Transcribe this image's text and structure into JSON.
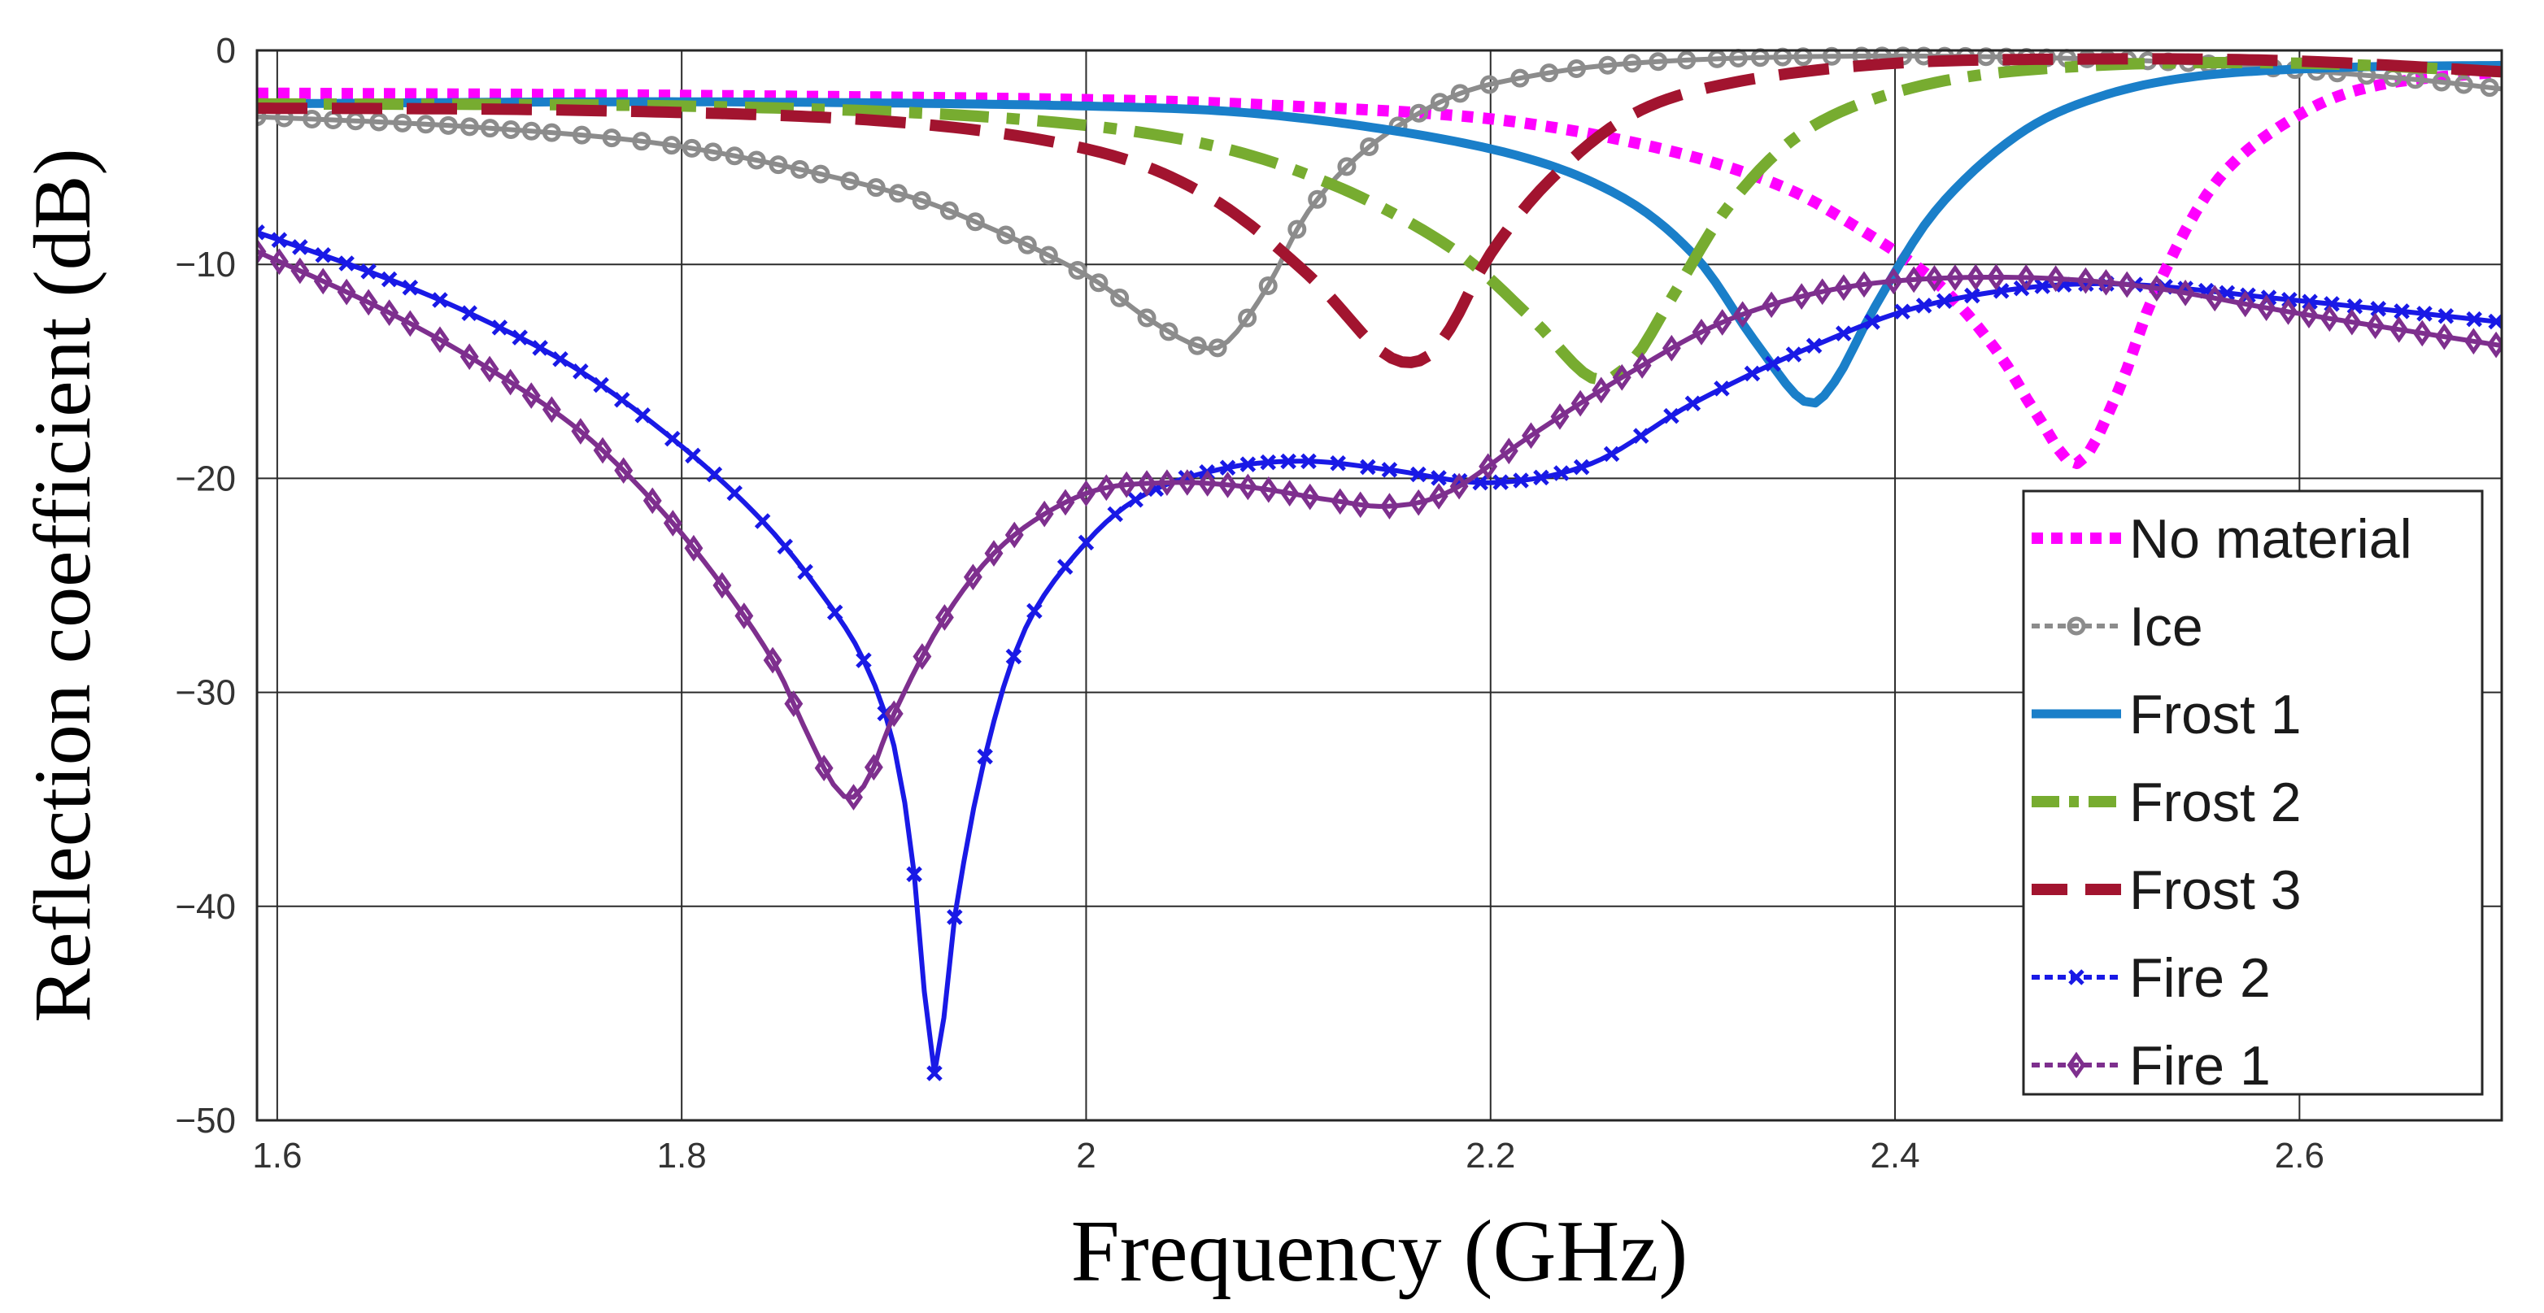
{
  "chart_data": {
    "type": "line",
    "title": "",
    "xlabel": "Frequency (GHz)",
    "ylabel": "Reflection coefficient (dB)",
    "xlim": [
      1.59,
      2.7
    ],
    "ylim": [
      -50,
      0
    ],
    "xticks": [
      1.6,
      1.8,
      2.0,
      2.2,
      2.4,
      2.6
    ],
    "xtick_labels": [
      "1.6",
      "1.8",
      "2",
      "2.2",
      "2.4",
      "2.6"
    ],
    "yticks": [
      0,
      -10,
      -20,
      -30,
      -40,
      -50
    ],
    "ytick_labels": [
      "0",
      "−10",
      "−20",
      "−30",
      "−40",
      "−50"
    ],
    "grid": true,
    "legend_position": "bottom-right",
    "series": [
      {
        "name": "No material",
        "color": "#ff00ff",
        "style": "dotted",
        "marker": "none",
        "points": [
          [
            1.59,
            -2
          ],
          [
            1.8,
            -2.1
          ],
          [
            2.0,
            -2.3
          ],
          [
            2.1,
            -2.6
          ],
          [
            2.2,
            -3.2
          ],
          [
            2.28,
            -4.5
          ],
          [
            2.34,
            -6.2
          ],
          [
            2.38,
            -8.2
          ],
          [
            2.42,
            -10.8
          ],
          [
            2.45,
            -14
          ],
          [
            2.47,
            -17
          ],
          [
            2.49,
            -19.3
          ],
          [
            2.51,
            -16
          ],
          [
            2.53,
            -11
          ],
          [
            2.56,
            -6
          ],
          [
            2.6,
            -3
          ],
          [
            2.64,
            -1.6
          ],
          [
            2.7,
            -1
          ]
        ]
      },
      {
        "name": "Ice",
        "color": "#8c8c8c",
        "style": "marker-line",
        "marker": "circle",
        "points": [
          [
            1.59,
            -3.1
          ],
          [
            1.7,
            -3.6
          ],
          [
            1.8,
            -4.5
          ],
          [
            1.9,
            -6.5
          ],
          [
            1.95,
            -8.2
          ],
          [
            2.0,
            -10.5
          ],
          [
            2.03,
            -12.5
          ],
          [
            2.055,
            -13.8
          ],
          [
            2.07,
            -13.6
          ],
          [
            2.09,
            -11
          ],
          [
            2.11,
            -7.5
          ],
          [
            2.14,
            -4.5
          ],
          [
            2.18,
            -2.2
          ],
          [
            2.22,
            -1.2
          ],
          [
            2.27,
            -0.6
          ],
          [
            2.35,
            -0.3
          ],
          [
            2.45,
            -0.3
          ],
          [
            2.55,
            -0.6
          ],
          [
            2.65,
            -1.3
          ],
          [
            2.7,
            -1.8
          ]
        ]
      },
      {
        "name": "Frost 1",
        "color": "#1a7fc9",
        "style": "solid",
        "marker": "none",
        "points": [
          [
            1.59,
            -2.5
          ],
          [
            1.8,
            -2.4
          ],
          [
            2.0,
            -2.6
          ],
          [
            2.1,
            -3.1
          ],
          [
            2.2,
            -4.6
          ],
          [
            2.26,
            -6.6
          ],
          [
            2.3,
            -9.5
          ],
          [
            2.33,
            -13.5
          ],
          [
            2.355,
            -16.4
          ],
          [
            2.37,
            -15.5
          ],
          [
            2.39,
            -12
          ],
          [
            2.42,
            -7.5
          ],
          [
            2.46,
            -4
          ],
          [
            2.5,
            -2.2
          ],
          [
            2.55,
            -1.2
          ],
          [
            2.62,
            -0.8
          ],
          [
            2.7,
            -0.7
          ]
        ]
      },
      {
        "name": "Frost 2",
        "color": "#77ac30",
        "style": "dashdot",
        "marker": "none",
        "points": [
          [
            1.59,
            -2.5
          ],
          [
            1.8,
            -2.6
          ],
          [
            1.95,
            -3.1
          ],
          [
            2.05,
            -4.2
          ],
          [
            2.12,
            -6.2
          ],
          [
            2.18,
            -9.2
          ],
          [
            2.22,
            -12.5
          ],
          [
            2.25,
            -15.3
          ],
          [
            2.27,
            -14.5
          ],
          [
            2.29,
            -11.5
          ],
          [
            2.32,
            -7
          ],
          [
            2.36,
            -3.5
          ],
          [
            2.42,
            -1.5
          ],
          [
            2.5,
            -0.7
          ],
          [
            2.6,
            -0.6
          ],
          [
            2.7,
            -1
          ]
        ]
      },
      {
        "name": "Frost 3",
        "color": "#a2142f",
        "style": "dashed",
        "marker": "none",
        "points": [
          [
            1.59,
            -2.7
          ],
          [
            1.75,
            -2.8
          ],
          [
            1.9,
            -3.3
          ],
          [
            2.0,
            -4.6
          ],
          [
            2.06,
            -6.8
          ],
          [
            2.11,
            -10.5
          ],
          [
            2.145,
            -14
          ],
          [
            2.165,
            -14.5
          ],
          [
            2.18,
            -13
          ],
          [
            2.2,
            -9.5
          ],
          [
            2.23,
            -6
          ],
          [
            2.27,
            -3
          ],
          [
            2.32,
            -1.5
          ],
          [
            2.4,
            -0.6
          ],
          [
            2.5,
            -0.4
          ],
          [
            2.6,
            -0.5
          ],
          [
            2.7,
            -1
          ]
        ]
      },
      {
        "name": "Fire 2",
        "color": "#1919e6",
        "style": "marker-line",
        "marker": "x",
        "points": [
          [
            1.59,
            -8.5
          ],
          [
            1.65,
            -10.5
          ],
          [
            1.7,
            -12.5
          ],
          [
            1.75,
            -15
          ],
          [
            1.8,
            -18.5
          ],
          [
            1.84,
            -22
          ],
          [
            1.87,
            -25.5
          ],
          [
            1.89,
            -28.5
          ],
          [
            1.905,
            -32.5
          ],
          [
            1.915,
            -38.5
          ],
          [
            1.925,
            -47.8
          ],
          [
            1.935,
            -40.5
          ],
          [
            1.95,
            -33
          ],
          [
            1.97,
            -27
          ],
          [
            2.0,
            -23
          ],
          [
            2.03,
            -20.7
          ],
          [
            2.07,
            -19.5
          ],
          [
            2.11,
            -19.2
          ],
          [
            2.15,
            -19.6
          ],
          [
            2.2,
            -20.2
          ],
          [
            2.25,
            -19.3
          ],
          [
            2.3,
            -16.5
          ],
          [
            2.36,
            -13.8
          ],
          [
            2.42,
            -11.8
          ],
          [
            2.5,
            -10.9
          ],
          [
            2.6,
            -11.7
          ],
          [
            2.7,
            -12.7
          ]
        ]
      },
      {
        "name": "Fire 1",
        "color": "#7e2f8e",
        "style": "marker-line",
        "marker": "diamond",
        "points": [
          [
            1.59,
            -9.4
          ],
          [
            1.65,
            -12
          ],
          [
            1.7,
            -14.6
          ],
          [
            1.75,
            -17.8
          ],
          [
            1.79,
            -21.5
          ],
          [
            1.82,
            -25
          ],
          [
            1.845,
            -28.5
          ],
          [
            1.86,
            -31.5
          ],
          [
            1.875,
            -34.3
          ],
          [
            1.885,
            -34.9
          ],
          [
            1.895,
            -33.5
          ],
          [
            1.905,
            -31
          ],
          [
            1.93,
            -26.5
          ],
          [
            1.96,
            -23
          ],
          [
            2.0,
            -20.7
          ],
          [
            2.04,
            -20.2
          ],
          [
            2.08,
            -20.4
          ],
          [
            2.12,
            -21
          ],
          [
            2.15,
            -21.3
          ],
          [
            2.18,
            -20.6
          ],
          [
            2.22,
            -18
          ],
          [
            2.27,
            -15
          ],
          [
            2.32,
            -12.5
          ],
          [
            2.38,
            -11
          ],
          [
            2.45,
            -10.6
          ],
          [
            2.52,
            -11
          ],
          [
            2.6,
            -12.3
          ],
          [
            2.7,
            -13.8
          ]
        ]
      }
    ]
  }
}
